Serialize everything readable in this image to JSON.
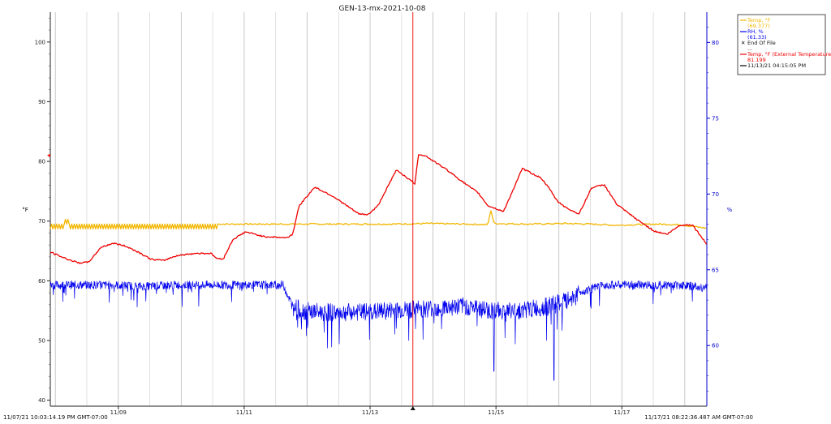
{
  "chart_data": {
    "type": "line",
    "title": "GEN-13-mx-2021-10-08",
    "start_label": "11/07/21 10:03:14.19 PM GMT-07:00",
    "end_label": "11/17/21 08:22:36.487 AM GMT-07:00",
    "y_left_label": "°F",
    "y_right_label": "%",
    "x_ticks": [
      "11/09",
      "11/11",
      "11/13",
      "11/15",
      "11/17"
    ],
    "y_left_ticks": [
      40,
      50,
      60,
      70,
      80,
      90,
      100
    ],
    "y_right_ticks": [
      60,
      65,
      70,
      75,
      80
    ],
    "ylim_left": [
      39,
      105
    ],
    "ylim_right": [
      56,
      82
    ],
    "xlim_days": [
      0,
      10.43
    ],
    "x_tick_days": [
      1.08,
      3.08,
      5.08,
      7.08,
      9.08
    ],
    "cursor_day": 5.76,
    "colors": {
      "temp": "#f2b600",
      "rh": "#0000ee",
      "ext": "#ee0000",
      "cursor": "#ee0000",
      "axis_right": "#0000cc",
      "grid": "#bbbbbb"
    },
    "series": [
      {
        "name": "Temp, °F",
        "axis": "left",
        "color": "#f2b600",
        "x": [
          0,
          0.6,
          1.2,
          1.8,
          2.4,
          2.7,
          3.0,
          3.6,
          4.2,
          4.8,
          5.4,
          6.0,
          6.6,
          6.95,
          7.0,
          7.05,
          7.6,
          8.2,
          8.6,
          9.0,
          9.6,
          10.0,
          10.43
        ],
        "y": [
          69.5,
          69.5,
          69.5,
          69.5,
          69.5,
          69.5,
          69.5,
          69.5,
          69.5,
          69.5,
          69.5,
          69.6,
          69.5,
          69.4,
          71.8,
          69.6,
          69.5,
          69.6,
          69.5,
          69.3,
          69.5,
          69.4,
          68.8
        ]
      },
      {
        "name": "RH, %",
        "axis": "right",
        "color": "#0000ee",
        "x": [
          0,
          0.5,
          1.0,
          1.5,
          2.0,
          2.5,
          3.0,
          3.5,
          3.7,
          3.85,
          4.0,
          4.3,
          4.6,
          5.0,
          5.4,
          5.8,
          6.2,
          6.6,
          7.0,
          7.4,
          7.8,
          8.2,
          8.4,
          8.8,
          9.2,
          9.6,
          10.0,
          10.43
        ],
        "y": [
          64.0,
          64.0,
          64.0,
          63.9,
          64.0,
          64.0,
          64.0,
          64.0,
          64.0,
          62.6,
          62.3,
          62.2,
          62.2,
          62.2,
          62.3,
          62.4,
          62.5,
          62.6,
          62.3,
          62.3,
          62.5,
          62.9,
          63.5,
          64.0,
          64.0,
          64.0,
          64.0,
          63.8
        ]
      },
      {
        "name": "Temp, °F (External Temperature)",
        "axis": "left",
        "color": "#ee0000",
        "x": [
          0,
          0.25,
          0.45,
          0.6,
          0.7,
          0.8,
          1.0,
          1.2,
          1.4,
          1.6,
          1.8,
          2.0,
          2.3,
          2.55,
          2.65,
          2.75,
          2.9,
          3.1,
          3.4,
          3.6,
          3.75,
          3.85,
          3.95,
          4.2,
          4.5,
          4.9,
          5.05,
          5.2,
          5.5,
          5.8,
          5.75,
          5.85,
          5.95,
          6.3,
          6.6,
          6.8,
          6.95,
          7.2,
          7.5,
          7.8,
          7.95,
          8.05,
          8.2,
          8.4,
          8.6,
          8.8,
          9.0,
          9.3,
          9.6,
          9.8,
          10.0,
          10.2,
          10.43
        ],
        "y": [
          64.8,
          63.7,
          63.0,
          63.1,
          64.2,
          65.6,
          66.3,
          65.8,
          64.8,
          63.6,
          63.4,
          64.2,
          64.6,
          64.6,
          63.7,
          63.7,
          66.9,
          68.2,
          67.4,
          67.3,
          67.2,
          67.8,
          72.5,
          75.7,
          74.1,
          71.2,
          71.1,
          72.5,
          78.6,
          76.2,
          72.6,
          81.2,
          81.0,
          78.6,
          76.2,
          74.7,
          72.6,
          71.6,
          78.8,
          77.2,
          75.1,
          73.4,
          72.2,
          71.2,
          75.6,
          76.1,
          72.8,
          70.4,
          68.3,
          67.8,
          69.3,
          69.4,
          66.1
        ]
      }
    ],
    "legend": {
      "placement": "top-right",
      "entries": [
        {
          "label": "Temp, °F",
          "value": "(69.377)",
          "color": "#f2b600",
          "style": "line"
        },
        {
          "label": "RH, %",
          "value": "(61.33)",
          "color": "#0000ee",
          "style": "line"
        },
        {
          "label": "End Of File",
          "value": "...",
          "color": "#000000",
          "style": "x"
        },
        {
          "label": "Temp, °F (External Temperature)",
          "value": "81.199",
          "color": "#ee0000",
          "style": "line"
        },
        {
          "label": "11/13/21 04:15:05 PM",
          "value": "",
          "color": "#000000",
          "style": "line"
        }
      ]
    }
  }
}
